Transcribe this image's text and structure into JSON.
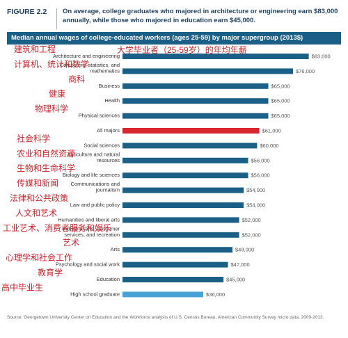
{
  "figure": {
    "label": "FIGURE 2.2",
    "caption": "On average, college graduates who majored in architecture or engineering earn $83,000 annually, while those who majored in education earn $45,000."
  },
  "colors": {
    "banner": "#1b5f86",
    "bar": "#1b5f86",
    "highlight": "#d7262e",
    "baseline": "#4aa3d6",
    "overlay_text": "#c8232c"
  },
  "overlay": {
    "title_cn": "大学毕业者（25-59岁）的年均年薪"
  },
  "chart_data": {
    "type": "bar",
    "orientation": "horizontal",
    "title": "Median annual wages of college-educated workers (ages 25-59) by major supergroup (2013$)",
    "xlim": [
      0,
      85000
    ],
    "grid": false,
    "categories": [
      {
        "label": "Architecture and engineering",
        "cn": "建筑和工程",
        "value": 83000,
        "value_label": "$83,000",
        "color": "#1b5f86"
      },
      {
        "label": "Computers, statistics, and mathematics",
        "cn": "计算机、统计和数学",
        "value": 76000,
        "value_label": "$76,000",
        "color": "#1b5f86"
      },
      {
        "label": "Business",
        "cn": "商科",
        "value": 65000,
        "value_label": "$65,000",
        "color": "#1b5f86"
      },
      {
        "label": "Health",
        "cn": "健康",
        "value": 65000,
        "value_label": "$65,000",
        "color": "#1b5f86"
      },
      {
        "label": "Physical sciences",
        "cn": "物理科学",
        "value": 65000,
        "value_label": "$65,000",
        "color": "#1b5f86"
      },
      {
        "label": "All majors",
        "cn": "",
        "value": 61000,
        "value_label": "$61,000",
        "color": "#d7262e"
      },
      {
        "label": "Social sciences",
        "cn": "社会科学",
        "value": 60000,
        "value_label": "$60,000",
        "color": "#1b5f86"
      },
      {
        "label": "Agriculture and natural resources",
        "cn": "农业和自然资源",
        "value": 56000,
        "value_label": "$56,000",
        "color": "#1b5f86"
      },
      {
        "label": "Biology and life sciences",
        "cn": "生物和生命科学",
        "value": 56000,
        "value_label": "$56,000",
        "color": "#1b5f86"
      },
      {
        "label": "Communications and journalism",
        "cn": "传媒和新闻",
        "value": 54000,
        "value_label": "$54,000",
        "color": "#1b5f86"
      },
      {
        "label": "Law and public policy",
        "cn": "法律和公共政策",
        "value": 54000,
        "value_label": "$54,000",
        "color": "#1b5f86"
      },
      {
        "label": "Humanities and liberal arts",
        "cn": "人文和艺术",
        "value": 52000,
        "value_label": "$52,000",
        "color": "#1b5f86"
      },
      {
        "label": "Industrial arts, consumer services, and recreation",
        "cn": "工业艺术、消费者服务和娱乐",
        "value": 52000,
        "value_label": "$52,000",
        "color": "#1b5f86"
      },
      {
        "label": "Arts",
        "cn": "艺术",
        "value": 49000,
        "value_label": "$49,000",
        "color": "#1b5f86"
      },
      {
        "label": "Psychology and social work",
        "cn": "心理学和社会工作",
        "value": 47000,
        "value_label": "$47,000",
        "color": "#1b5f86"
      },
      {
        "label": "Education",
        "cn": "教育学",
        "value": 45000,
        "value_label": "$45,000",
        "color": "#1b5f86"
      },
      {
        "label": "High school graduate",
        "cn": "高中毕业生",
        "value": 36000,
        "value_label": "$36,000",
        "color": "#4aa3d6"
      }
    ]
  },
  "source": {
    "text": "Source: Georgetown University Center on Education and the Workforce analysis of U.S. Census Bureau, American Community Survey micro data, 2009-2013."
  }
}
